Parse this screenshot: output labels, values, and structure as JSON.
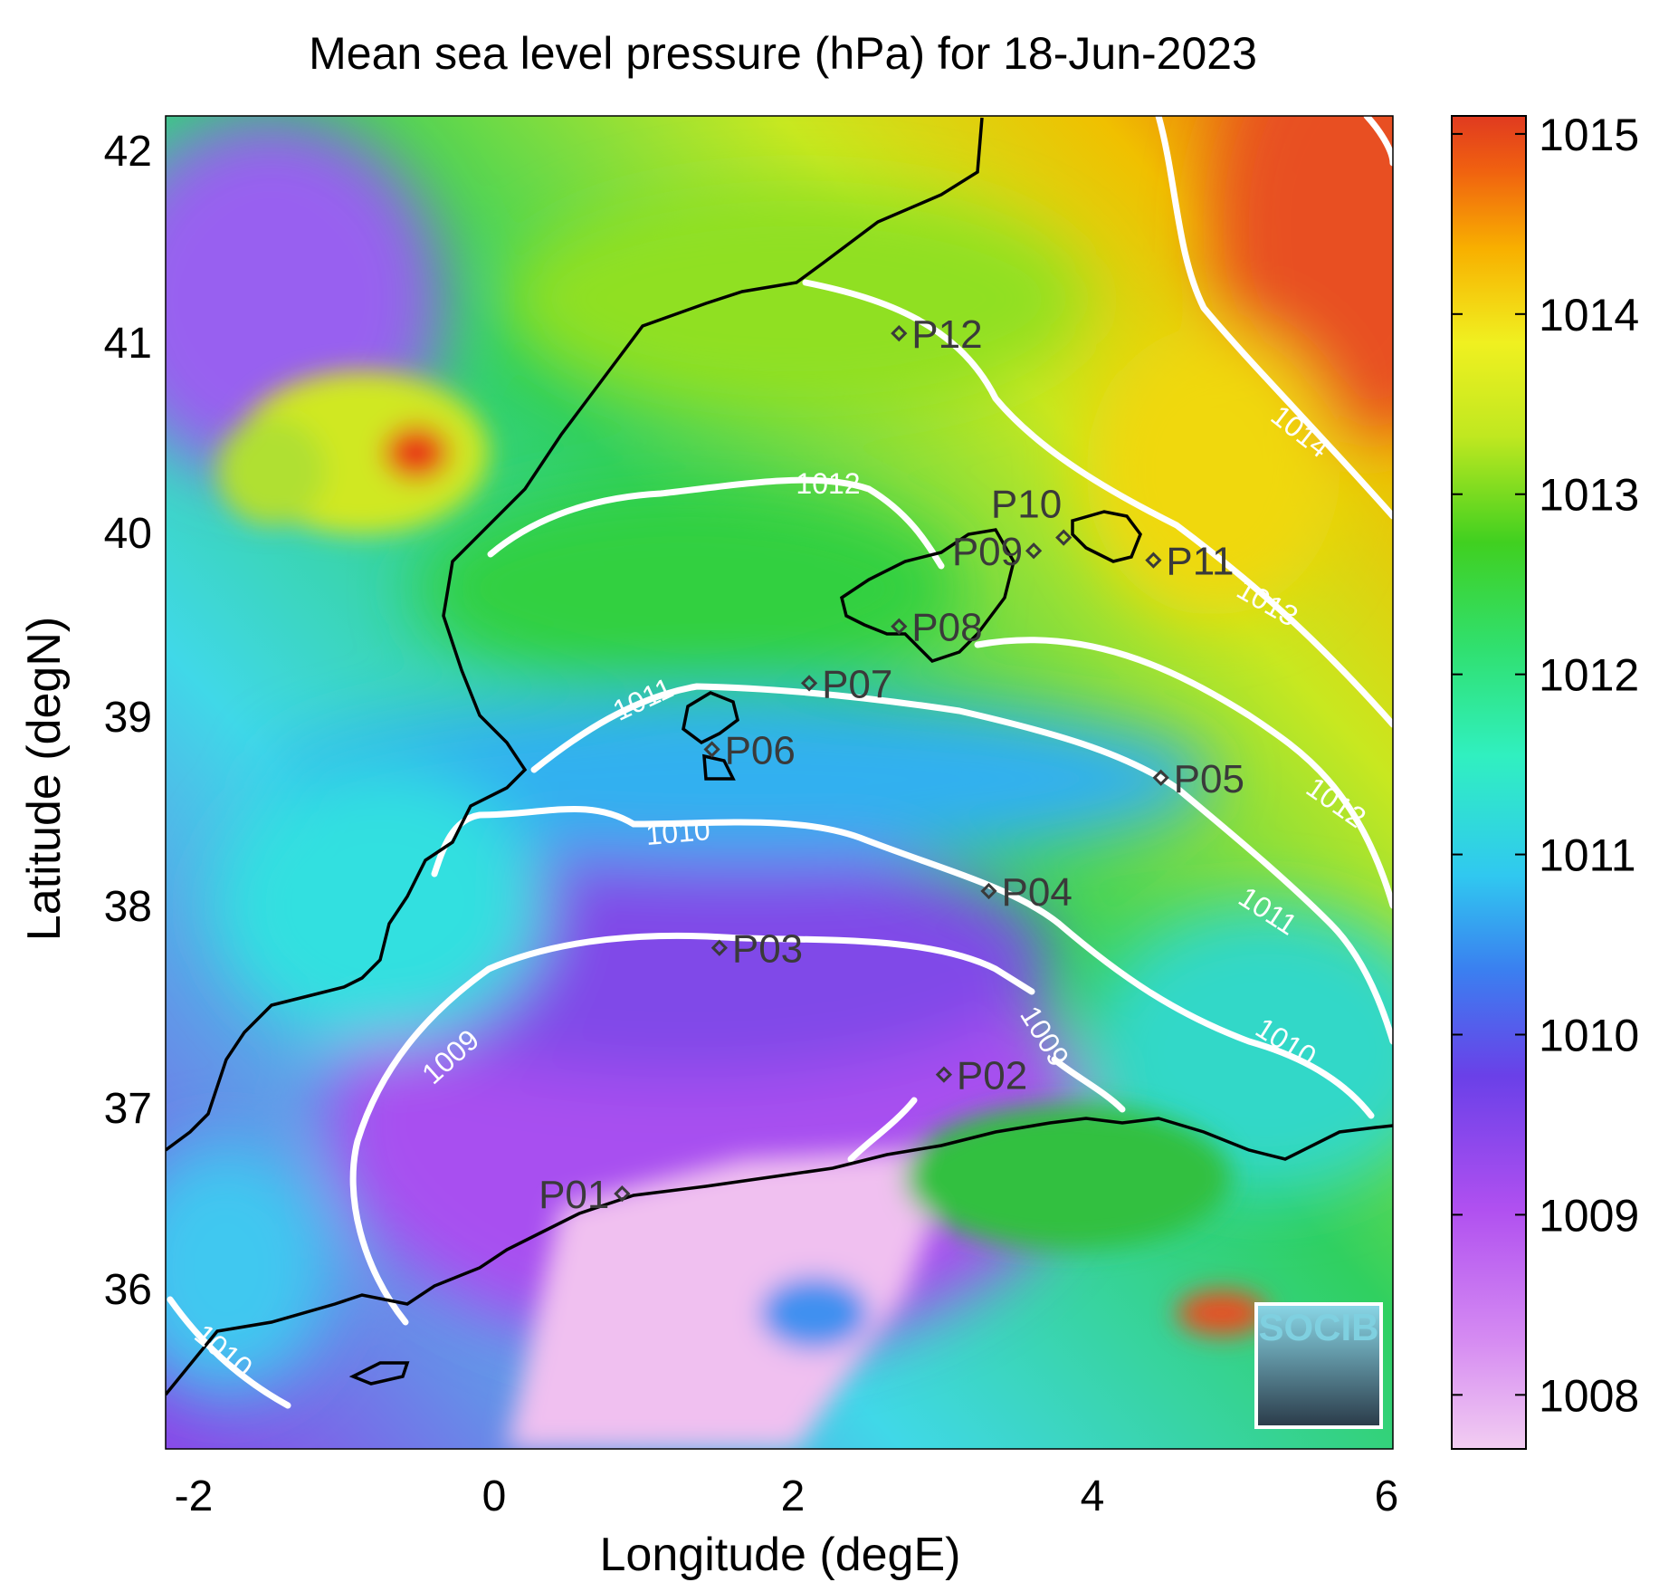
{
  "title": "Mean sea level pressure (hPa) for 18-Jun-2023",
  "xlabel": "Longitude (degE)",
  "ylabel": "Latitude (degN)",
  "x_ticks": [
    "-2",
    "0",
    "2",
    "4",
    "6"
  ],
  "y_ticks": [
    "36",
    "37",
    "38",
    "39",
    "40",
    "41",
    "42"
  ],
  "colorbar": {
    "ticks": [
      "1008",
      "1009",
      "1010",
      "1011",
      "1012",
      "1013",
      "1014",
      "1015"
    ],
    "range": [
      1007.7,
      1015.1
    ],
    "colors": [
      "#f0c8f0",
      "#c060f0",
      "#8040e0",
      "#4060f0",
      "#30d0f0",
      "#30f0b0",
      "#30d040",
      "#a0e020",
      "#f0f020",
      "#f8a000",
      "#e83818"
    ]
  },
  "logo": "SOCIB",
  "map_extent": {
    "lon": [
      -2.2,
      6.0
    ],
    "lat": [
      35.15,
      42.2
    ]
  },
  "stations": [
    {
      "name": "P01",
      "lon": 0.85,
      "lat": 36.5
    },
    {
      "name": "P02",
      "lon": 3.0,
      "lat": 37.13
    },
    {
      "name": "P03",
      "lon": 1.5,
      "lat": 37.8
    },
    {
      "name": "P04",
      "lon": 3.3,
      "lat": 38.1
    },
    {
      "name": "P05",
      "lon": 4.45,
      "lat": 38.7
    },
    {
      "name": "P06",
      "lon": 1.45,
      "lat": 38.85
    },
    {
      "name": "P07",
      "lon": 2.1,
      "lat": 39.2
    },
    {
      "name": "P08",
      "lon": 2.7,
      "lat": 39.5
    },
    {
      "name": "P09",
      "lon": 3.6,
      "lat": 39.9
    },
    {
      "name": "P10",
      "lon": 3.8,
      "lat": 39.97
    },
    {
      "name": "P11",
      "lon": 4.4,
      "lat": 39.85
    },
    {
      "name": "P12",
      "lon": 2.7,
      "lat": 41.05
    }
  ],
  "contour_labels": [
    "1009",
    "1009",
    "1010",
    "1010",
    "1010",
    "1011",
    "1011",
    "1012",
    "1012",
    "1013",
    "1014"
  ],
  "chart_data": {
    "type": "heatmap",
    "title": "Mean sea level pressure (hPa) for 18-Jun-2023",
    "xlabel": "Longitude (degE)",
    "ylabel": "Latitude (degN)",
    "xlim": [
      -2.2,
      6.0
    ],
    "ylim": [
      35.15,
      42.2
    ],
    "units": "hPa",
    "color_range": [
      1007.7,
      1015.1
    ],
    "contour_levels": [
      1009,
      1010,
      1011,
      1012,
      1013,
      1014
    ]
  }
}
